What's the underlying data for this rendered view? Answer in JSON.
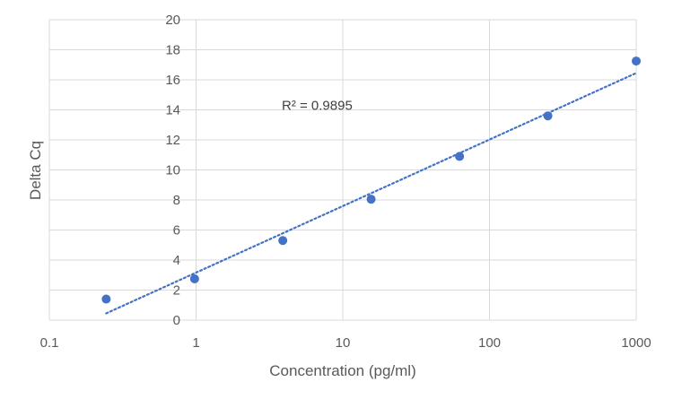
{
  "chart_data": {
    "type": "scatter",
    "title": "",
    "xlabel": "Concentration (pg/ml)",
    "ylabel": "Delta Cq",
    "x_scale": "log10",
    "xlim": [
      0.1,
      1000
    ],
    "ylim": [
      0,
      20
    ],
    "x_ticks": [
      0.1,
      1,
      10,
      100,
      1000
    ],
    "x_tick_labels": [
      "0.1",
      "1",
      "10",
      "100",
      "1000"
    ],
    "y_ticks": [
      0,
      2,
      4,
      6,
      8,
      10,
      12,
      14,
      16,
      18,
      20
    ],
    "y_tick_labels": [
      "0",
      "2",
      "4",
      "6",
      "8",
      "10",
      "12",
      "14",
      "16",
      "18",
      "20"
    ],
    "grid": true,
    "legend": "none",
    "series": [
      {
        "x": [
          0.244,
          0.977,
          3.9,
          15.6,
          62.5,
          250,
          1000
        ],
        "y": [
          1.4,
          2.75,
          5.3,
          8.05,
          10.9,
          13.6,
          17.25
        ],
        "marker_color": "#4472C4"
      }
    ],
    "trendline": {
      "kind": "linear-in-log10-x",
      "x_start": 0.244,
      "x_end": 1000,
      "y_start": 0.45,
      "y_end": 16.45,
      "color": "#4472C4",
      "style": "dotted"
    },
    "annotations": [
      {
        "text": "R² = 0.9895",
        "x": 10,
        "y": 14.3
      }
    ],
    "colors": {
      "grid": "#D9D9D9",
      "axis_text": "#595959"
    }
  }
}
